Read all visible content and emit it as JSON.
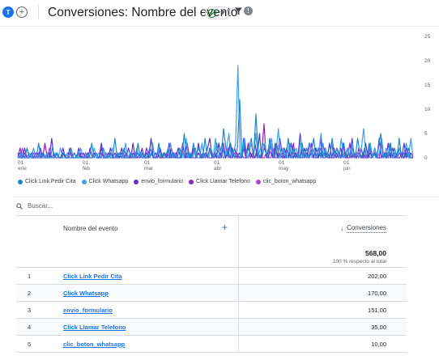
{
  "header": {
    "avatar_letter": "T",
    "add_symbol": "+",
    "title": "Conversiones: Nombre del evento",
    "info_symbol": "!"
  },
  "colors": {
    "accent": "#1a73e8",
    "series": [
      "#1e88c8",
      "#3fa0f0",
      "#5c2fd6",
      "#8e24c8",
      "#a64ad8"
    ]
  },
  "chart_data": {
    "type": "line",
    "x_ticks": [
      {
        "day": "01",
        "month": "ene"
      },
      {
        "day": "01",
        "month": "feb"
      },
      {
        "day": "01",
        "month": "mar"
      },
      {
        "day": "01",
        "month": "abr"
      },
      {
        "day": "01",
        "month": "may"
      },
      {
        "day": "01",
        "month": "jun"
      }
    ],
    "y_ticks": [
      "0",
      "5",
      "10",
      "15",
      "20",
      "25"
    ],
    "ylim": [
      0,
      25
    ],
    "series": [
      {
        "name": "Click Link Pedir Cita",
        "values": [
          0,
          1,
          0,
          0,
          2,
          0,
          1,
          0,
          0,
          3,
          0,
          1,
          0,
          0,
          0,
          2,
          0,
          1,
          0,
          0,
          1,
          0,
          0,
          2,
          0,
          0,
          1,
          0,
          0,
          0,
          1,
          0,
          3,
          0,
          1,
          0,
          0,
          2,
          0,
          0,
          1,
          0,
          4,
          0,
          1,
          0,
          2,
          0,
          0,
          1,
          0,
          0,
          3,
          0,
          1,
          0,
          0,
          2,
          1,
          0,
          0,
          3,
          0,
          1,
          0,
          2,
          0,
          1,
          0,
          0,
          2,
          0,
          5,
          0,
          1,
          0,
          3,
          0,
          2,
          1,
          0,
          4,
          0,
          2,
          1,
          0,
          3,
          1,
          0,
          6,
          2,
          0,
          3,
          1,
          0,
          2,
          12,
          0,
          3,
          1,
          2,
          4,
          0,
          9,
          1,
          0,
          3,
          2,
          0,
          4,
          1,
          0,
          3,
          0,
          2,
          1,
          0,
          4,
          0,
          2,
          0,
          1,
          0,
          3,
          0,
          2,
          0,
          1,
          4,
          0,
          2,
          0,
          3,
          0,
          1,
          0,
          4,
          0,
          2,
          1,
          0,
          3,
          0,
          1,
          0,
          2,
          0,
          4,
          1,
          0,
          2,
          0,
          3,
          0,
          1,
          0,
          2,
          5,
          0,
          1,
          0,
          3,
          0,
          2,
          0,
          4,
          0,
          1,
          0,
          2,
          0,
          0
        ]
      },
      {
        "name": "Click Whatsapp",
        "values": [
          0,
          0,
          1,
          0,
          0,
          1,
          0,
          2,
          0,
          0,
          1,
          0,
          0,
          1,
          0,
          0,
          0,
          1,
          0,
          2,
          0,
          0,
          1,
          0,
          0,
          1,
          0,
          0,
          2,
          0,
          0,
          1,
          0,
          0,
          2,
          0,
          1,
          0,
          0,
          1,
          0,
          0,
          2,
          0,
          0,
          1,
          0,
          0,
          3,
          0,
          1,
          0,
          0,
          2,
          0,
          1,
          0,
          0,
          1,
          0,
          3,
          0,
          0,
          2,
          0,
          1,
          0,
          0,
          3,
          0,
          1,
          0,
          0,
          2,
          0,
          4,
          0,
          1,
          0,
          2,
          0,
          0,
          3,
          0,
          1,
          0,
          2,
          0,
          4,
          0,
          1,
          3,
          0,
          2,
          5,
          0,
          1,
          3,
          19,
          0,
          2,
          4,
          0,
          1,
          3,
          0,
          5,
          0,
          2,
          1,
          3,
          0,
          2,
          4,
          0,
          1,
          6,
          0,
          2,
          1,
          0,
          3,
          0,
          1,
          2,
          0,
          4,
          0,
          1,
          0,
          3,
          0,
          2,
          0,
          1,
          5,
          0,
          2,
          0,
          1,
          3,
          0,
          2,
          0,
          4,
          0,
          1,
          2,
          0,
          3,
          0,
          1,
          0,
          2,
          6,
          0,
          1,
          3,
          0,
          2,
          0,
          1,
          4,
          0,
          2,
          0,
          3,
          0,
          1,
          0,
          2,
          0,
          1,
          3,
          0,
          4,
          0
        ]
      },
      {
        "name": "envio_formulario",
        "values": [
          1,
          0,
          0,
          2,
          0,
          1,
          0,
          0,
          1,
          0,
          2,
          0,
          0,
          1,
          0,
          4,
          0,
          1,
          0,
          0,
          2,
          0,
          1,
          0,
          0,
          1,
          0,
          2,
          0,
          1,
          0,
          0,
          2,
          0,
          1,
          0,
          0,
          3,
          0,
          1,
          0,
          2,
          0,
          0,
          1,
          0,
          2,
          0,
          1,
          0,
          0,
          3,
          0,
          1,
          0,
          2,
          0,
          1,
          0,
          4,
          0,
          1,
          0,
          2,
          0,
          1,
          0,
          3,
          0,
          1,
          0,
          2,
          0,
          1,
          0,
          3,
          0,
          1,
          2,
          0,
          3,
          0,
          1,
          0,
          2,
          4,
          0,
          1,
          0,
          3,
          0,
          2,
          0,
          1,
          3,
          0,
          2,
          0,
          1,
          0,
          4,
          0,
          2,
          1,
          0,
          3,
          0,
          5,
          0,
          2,
          1,
          0,
          3,
          0,
          2,
          0,
          4,
          1,
          0,
          2,
          0,
          3,
          0,
          1,
          0,
          5,
          0,
          2,
          0,
          3,
          1,
          0,
          2,
          0,
          4,
          0,
          1,
          0,
          3,
          0,
          2,
          0,
          1,
          0,
          3,
          0,
          2,
          0,
          4,
          0,
          1,
          0,
          2,
          0,
          3,
          0,
          1,
          0,
          2,
          0,
          4,
          0,
          1,
          0,
          3,
          0,
          2,
          0,
          1,
          2,
          0,
          3,
          0,
          1,
          0,
          0
        ]
      },
      {
        "name": "Click Llamar Telefono",
        "values": [
          0,
          2,
          0,
          1,
          0,
          0,
          1,
          0,
          0,
          1,
          0,
          0,
          3,
          0,
          1,
          0,
          0,
          1,
          0,
          0,
          1,
          0,
          0,
          2,
          0,
          1,
          0,
          0,
          1,
          0,
          0,
          1,
          0,
          0,
          1,
          0,
          0,
          2,
          0,
          0,
          1,
          0,
          0,
          1,
          0,
          0,
          1,
          0,
          0,
          2,
          0,
          1,
          0,
          0,
          1,
          0,
          0,
          2,
          0,
          1,
          0,
          0,
          1,
          0,
          0,
          1,
          0,
          0,
          2,
          0,
          1,
          0,
          0,
          3,
          0,
          1,
          0,
          0,
          2,
          0,
          1,
          0,
          0,
          1,
          0,
          2,
          0,
          0,
          1,
          0,
          0,
          3,
          0,
          1,
          0,
          2,
          0,
          1,
          0,
          0,
          2,
          0,
          3,
          0,
          1,
          0,
          2,
          0,
          1,
          7,
          0,
          2,
          1,
          0,
          3,
          0,
          1,
          0,
          2,
          0,
          1,
          0,
          3,
          0,
          1,
          0,
          2,
          0,
          1,
          0,
          3,
          0,
          2,
          0,
          1,
          0,
          2,
          0,
          0,
          3,
          0,
          1,
          0,
          2,
          0,
          1,
          0,
          3,
          0,
          1,
          0,
          2,
          0,
          1,
          0,
          0,
          2,
          0,
          1,
          0,
          0,
          3,
          0,
          1,
          0,
          2,
          0,
          1,
          0,
          0,
          1,
          0,
          2,
          0,
          1,
          0
        ]
      },
      {
        "name": "clic_boton_whatsapp",
        "values": [
          0,
          0,
          2,
          0,
          0,
          1,
          0,
          1,
          0,
          0,
          0,
          1,
          0,
          0,
          2,
          0,
          1,
          0,
          0,
          0,
          1,
          0,
          0,
          1,
          0,
          0,
          0,
          1,
          0,
          0,
          1,
          0,
          0,
          0,
          1,
          0,
          0,
          1,
          0,
          0,
          0,
          1,
          0,
          0,
          0,
          1,
          0,
          0,
          1,
          0,
          0,
          0,
          1,
          0,
          0,
          1,
          0,
          0,
          0,
          1,
          0,
          0,
          1,
          0,
          0,
          0,
          1,
          0,
          0,
          1,
          0,
          0,
          0,
          1,
          0,
          0,
          1,
          0,
          0,
          0,
          1,
          0,
          0,
          1,
          0,
          0,
          0,
          1,
          0,
          0,
          1,
          0,
          0,
          2,
          0,
          0,
          1,
          0,
          0,
          1,
          0,
          0,
          0,
          1,
          0,
          0,
          1,
          0,
          0,
          0,
          1,
          0,
          0,
          2,
          0,
          0,
          1,
          0,
          0,
          0,
          1,
          0,
          0,
          1,
          0,
          0,
          0,
          1,
          0,
          0,
          1,
          0,
          0,
          0,
          2,
          0,
          0,
          1,
          0,
          0,
          0,
          1,
          0,
          0,
          1,
          0,
          0,
          0,
          1,
          0,
          0,
          1,
          0,
          0,
          0,
          1,
          0,
          0,
          1,
          0,
          0,
          0,
          1,
          0,
          0,
          1,
          0,
          0,
          0,
          1,
          0,
          0,
          1,
          0,
          0,
          0
        ]
      }
    ]
  },
  "search": {
    "placeholder": "Buscar..."
  },
  "table": {
    "col_name_header": "Nombre del evento",
    "col_value_header": "Conversiones",
    "add_column_symbol": "+",
    "sort_arrow": "↓",
    "total_value": "568,00",
    "total_sub": "100 % respecto al total",
    "rows": [
      {
        "idx": "1",
        "name": "Click Link Pedir Cita",
        "value": "202,00"
      },
      {
        "idx": "2",
        "name": "Click Whatsapp",
        "value": "170,00"
      },
      {
        "idx": "3",
        "name": "envio_formulario",
        "value": "151,00"
      },
      {
        "idx": "4",
        "name": "Click Llamar Telefono",
        "value": "35,00"
      },
      {
        "idx": "5",
        "name": "clic_boton_whatsapp",
        "value": "10,00"
      }
    ]
  }
}
